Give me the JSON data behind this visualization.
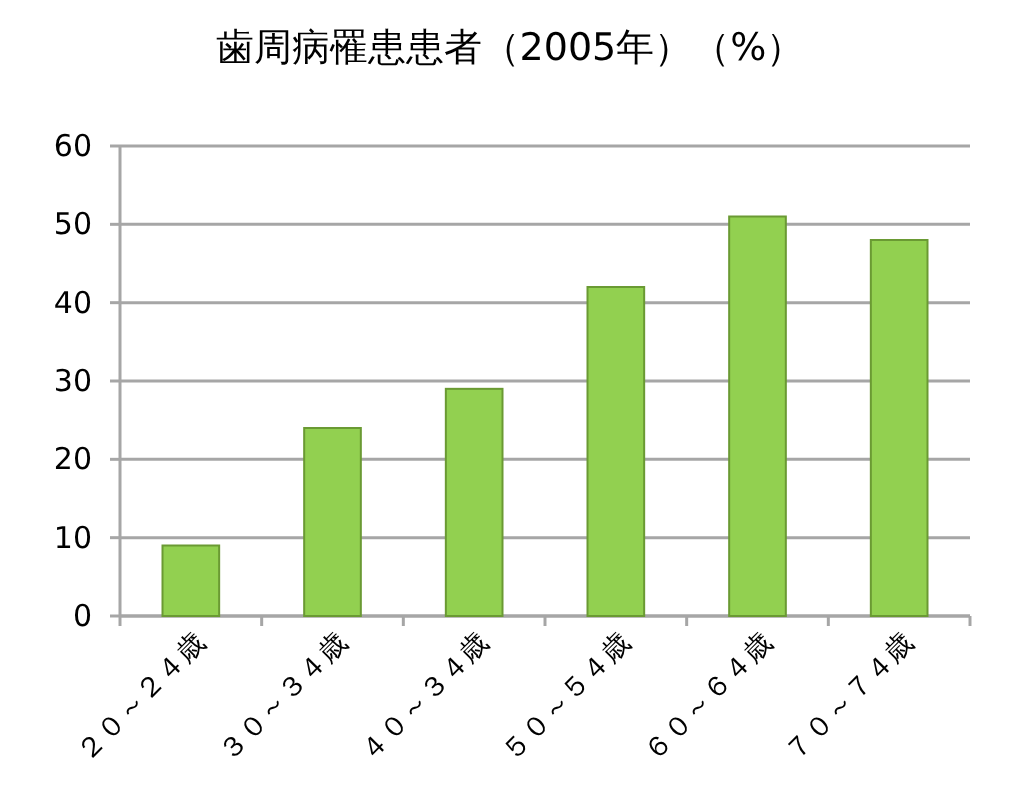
{
  "chart_data": {
    "type": "bar",
    "title": "歯周病罹患患者（2005年）（%）",
    "categories": [
      "２０～２４歳",
      "３０～３４歳",
      "４０～３４歳",
      "５０～５４歳",
      "６０～６４歳",
      "７０～７４歳"
    ],
    "values": [
      9,
      24,
      29,
      42,
      51,
      48
    ],
    "color": "#92d050",
    "ylim": [
      0,
      60
    ],
    "yticks": [
      0,
      10,
      20,
      30,
      40,
      50,
      60
    ],
    "grid": "y"
  }
}
